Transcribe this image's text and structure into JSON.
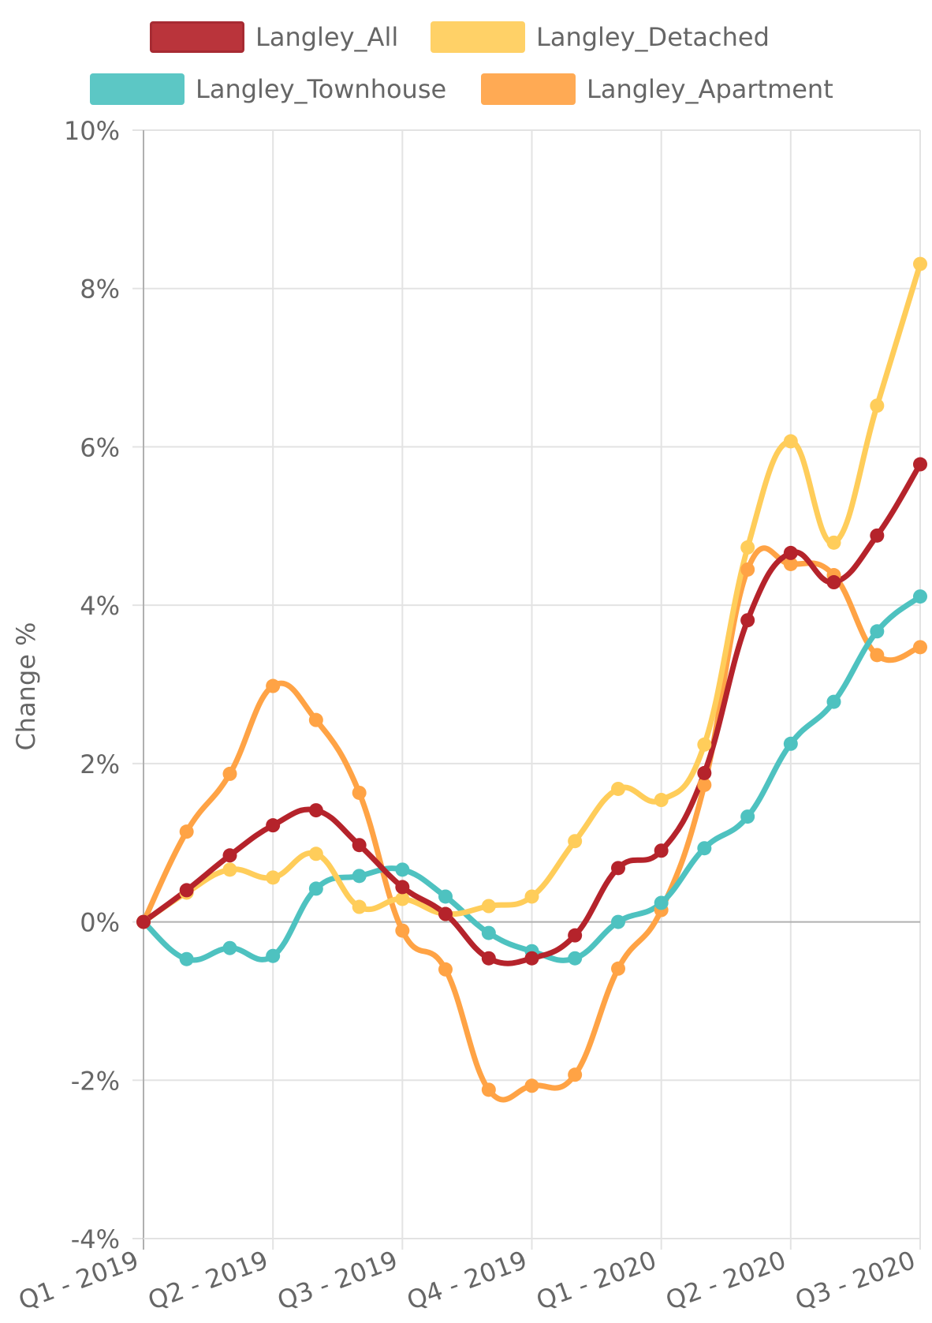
{
  "colors": {
    "langley_all": "#b5232b",
    "langley_detached": "#ffcd5a",
    "langley_townhouse": "#4ec2c0",
    "langley_apartment": "#ffa345",
    "grid": "#e3e3e3",
    "axis": "#b0b0b0",
    "text": "#666666"
  },
  "legend": {
    "items": [
      {
        "key": "langley_all",
        "label": "Langley_All"
      },
      {
        "key": "langley_detached",
        "label": "Langley_Detached"
      },
      {
        "key": "langley_townhouse",
        "label": "Langley_Townhouse"
      },
      {
        "key": "langley_apartment",
        "label": "Langley_Apartment"
      }
    ]
  },
  "chart_data": {
    "type": "line",
    "title": "",
    "xlabel": "",
    "ylabel": "Change %",
    "ylim": [
      -4,
      10
    ],
    "y_ticks": [
      -4,
      -2,
      0,
      2,
      4,
      6,
      8,
      10
    ],
    "y_tick_labels": [
      "-4%",
      "-2%",
      "0%",
      "2%",
      "4%",
      "6%",
      "8%",
      "10%"
    ],
    "x": [
      0,
      0.333,
      0.667,
      1,
      1.333,
      1.667,
      2,
      2.333,
      2.667,
      3,
      3.333,
      3.667,
      4,
      4.333,
      4.667,
      5,
      5.333,
      5.667,
      6
    ],
    "x_ticks": [
      0,
      1,
      2,
      3,
      4,
      5,
      6
    ],
    "x_tick_labels": [
      "Q1 - 2019",
      "Q2 - 2019",
      "Q3 - 2019",
      "Q4 - 2019",
      "Q1 - 2020",
      "Q2 - 2020",
      "Q3 - 2020"
    ],
    "grid": true,
    "legend_position": "top",
    "series": [
      {
        "name": "Langley_Apartment",
        "key": "langley_apartment",
        "values": [
          0,
          1.14,
          1.87,
          2.98,
          2.55,
          1.63,
          -0.11,
          -0.6,
          -2.12,
          -2.07,
          -1.93,
          -0.59,
          0.15,
          1.73,
          4.45,
          4.52,
          4.38,
          3.37,
          3.47
        ]
      },
      {
        "name": "Langley_Townhouse",
        "key": "langley_townhouse",
        "values": [
          0,
          -0.47,
          -0.33,
          -0.43,
          0.42,
          0.58,
          0.66,
          0.32,
          -0.14,
          -0.37,
          -0.46,
          0,
          0.24,
          0.93,
          1.33,
          2.25,
          2.78,
          3.67,
          4.11
        ]
      },
      {
        "name": "Langley_Detached",
        "key": "langley_detached",
        "values": [
          0,
          0.37,
          0.66,
          0.56,
          0.86,
          0.19,
          0.29,
          0.1,
          0.2,
          0.32,
          1.02,
          1.68,
          1.54,
          2.24,
          4.73,
          6.07,
          4.79,
          6.52,
          8.31
        ]
      },
      {
        "name": "Langley_All",
        "key": "langley_all",
        "values": [
          0,
          0.4,
          0.84,
          1.22,
          1.41,
          0.97,
          0.44,
          0.1,
          -0.46,
          -0.46,
          -0.17,
          0.68,
          0.9,
          1.88,
          3.81,
          4.66,
          4.29,
          4.88,
          5.78
        ]
      }
    ]
  }
}
